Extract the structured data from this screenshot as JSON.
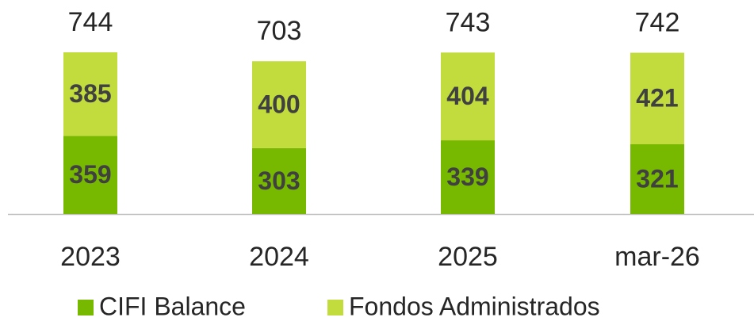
{
  "chart_data": {
    "type": "stacked_bar",
    "categories": [
      "2023",
      "2024",
      "2025",
      "mar-26"
    ],
    "series": [
      {
        "name": "CIFI Balance",
        "color": "#77b800",
        "values": [
          359,
          303,
          339,
          321
        ]
      },
      {
        "name": "Fondos Administrados",
        "color": "#c2dc3e",
        "values": [
          385,
          400,
          404,
          421
        ]
      }
    ],
    "totals": [
      744,
      703,
      743,
      742
    ]
  }
}
